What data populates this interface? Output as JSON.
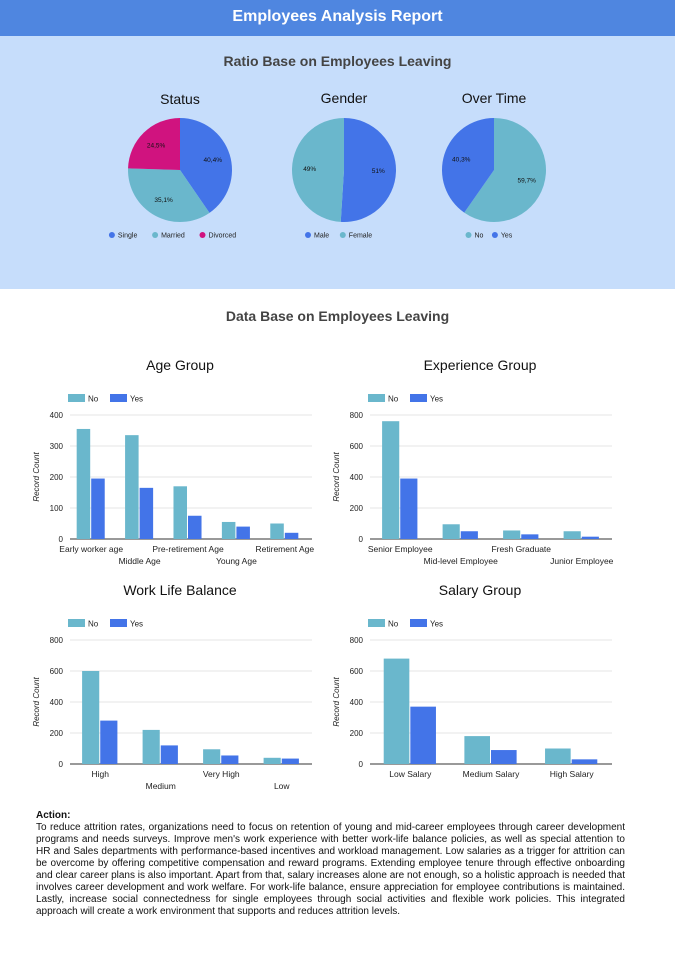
{
  "report": {
    "title": "Employees Analysis Report",
    "ratio_title": "Ratio Base on Employees Leaving",
    "data_title": "Data Base on Employees Leaving"
  },
  "action": {
    "label": "Action:",
    "text": "To reduce attrition rates, organizations need to focus on retention of young and mid-career employees through career development programs and needs surveys. Improve men's work experience with better work-life balance policies, as well as special attention to HR and Sales departments with performance-based incentives and workload management. Low salaries as a trigger for attrition can be overcome by offering competitive compensation and reward programs. Extending employee tenure through effective onboarding and clear career plans is also important. Apart from that, salary increases alone are not enough, so a holistic approach is needed that involves career development and work welfare. For work-life balance, ensure appreciation for employee contributions is maintained. Lastly, increase social connectedness for single employees through social activities and flexible work policies. This integrated approach will create a work environment that supports and reduces attrition levels."
  },
  "colors": {
    "no": "#6ab7cc",
    "yes": "#4374e8",
    "divorced": "#d0137f",
    "grid": "#dddddd"
  },
  "chart_data": [
    {
      "type": "pie",
      "title": "Status",
      "labels": [
        "Single",
        "Married",
        "Divorced"
      ],
      "values": [
        40.4,
        35.1,
        24.5
      ],
      "value_labels": [
        "40,4%",
        "35,1%",
        "24,5%"
      ],
      "colors": [
        "#4374e8",
        "#6ab7cc",
        "#d0137f"
      ],
      "legend": "bottom"
    },
    {
      "type": "pie",
      "title": "Gender",
      "labels": [
        "Male",
        "Female"
      ],
      "values": [
        51,
        49
      ],
      "value_labels": [
        "51%",
        "49%"
      ],
      "colors": [
        "#4374e8",
        "#6ab7cc"
      ],
      "legend": "bottom"
    },
    {
      "type": "pie",
      "title": "Over Time",
      "labels": [
        "No",
        "Yes"
      ],
      "values": [
        59.7,
        40.3
      ],
      "value_labels": [
        "59,7%",
        "40,3%"
      ],
      "colors": [
        "#6ab7cc",
        "#4374e8"
      ],
      "legend": "bottom"
    },
    {
      "type": "bar",
      "title": "Age Group",
      "categories": [
        "Early worker age",
        "Middle Age",
        "Pre-retirement Age",
        "Young Age",
        "Retirement Age"
      ],
      "series": [
        {
          "name": "No",
          "values": [
            355,
            335,
            170,
            55,
            50
          ]
        },
        {
          "name": "Yes",
          "values": [
            195,
            165,
            75,
            40,
            20
          ]
        }
      ],
      "ylabel": "Record Count",
      "ylim": [
        0,
        400
      ],
      "yticks": [
        0,
        100,
        200,
        300,
        400
      ],
      "legend": "top-left"
    },
    {
      "type": "bar",
      "title": "Experience Group",
      "categories": [
        "Senior Employee",
        "Mid-level Employee",
        "Fresh Graduate",
        "Junior Employee"
      ],
      "series": [
        {
          "name": "No",
          "values": [
            760,
            95,
            55,
            50
          ]
        },
        {
          "name": "Yes",
          "values": [
            390,
            50,
            30,
            15
          ]
        }
      ],
      "ylabel": "Record Count",
      "ylim": [
        0,
        800
      ],
      "yticks": [
        0,
        200,
        400,
        600,
        800
      ],
      "legend": "top-left"
    },
    {
      "type": "bar",
      "title": "Work Life Balance",
      "categories": [
        "High",
        "Medium",
        "Very High",
        "Low"
      ],
      "series": [
        {
          "name": "No",
          "values": [
            600,
            220,
            95,
            40
          ]
        },
        {
          "name": "Yes",
          "values": [
            280,
            120,
            55,
            35
          ]
        }
      ],
      "ylabel": "Record Count",
      "ylim": [
        0,
        800
      ],
      "yticks": [
        0,
        200,
        400,
        600,
        800
      ],
      "legend": "top-left"
    },
    {
      "type": "bar",
      "title": "Salary Group",
      "categories": [
        "Low Salary",
        "Medium Salary",
        "High Salary"
      ],
      "series": [
        {
          "name": "No",
          "values": [
            680,
            180,
            100
          ]
        },
        {
          "name": "Yes",
          "values": [
            370,
            90,
            30
          ]
        }
      ],
      "ylabel": "Record Count",
      "ylim": [
        0,
        800
      ],
      "yticks": [
        0,
        200,
        400,
        600,
        800
      ],
      "legend": "top-left"
    }
  ]
}
